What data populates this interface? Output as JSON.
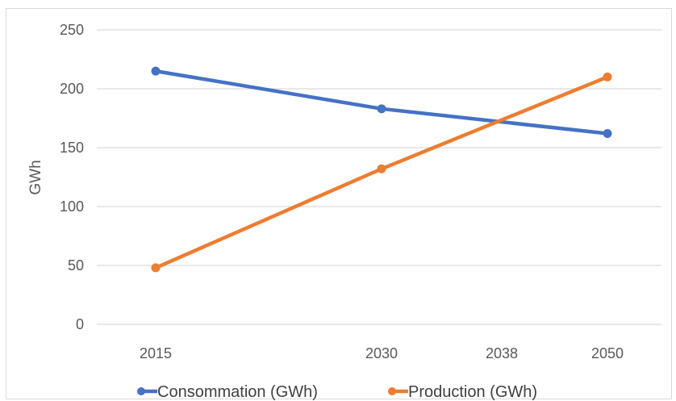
{
  "chart_data": {
    "type": "line",
    "categories": [
      "2015",
      "2030",
      "2038",
      "2050"
    ],
    "x": [
      2015,
      2030,
      2038,
      2050
    ],
    "series": [
      {
        "name": "Consommation (GWh)",
        "color": "#4472C4",
        "x": [
          2015,
          2030,
          2050
        ],
        "values": [
          215,
          183,
          162
        ]
      },
      {
        "name": "Production (GWh)",
        "color": "#ED7D31",
        "x": [
          2015,
          2030,
          2050
        ],
        "values": [
          48,
          132,
          210
        ]
      }
    ],
    "title": "",
    "xlabel": "",
    "ylabel": "GWh",
    "ylim": [
      0,
      250
    ],
    "yticks": [
      0,
      50,
      100,
      150,
      200,
      250
    ],
    "grid": true,
    "legend_position": "bottom"
  }
}
